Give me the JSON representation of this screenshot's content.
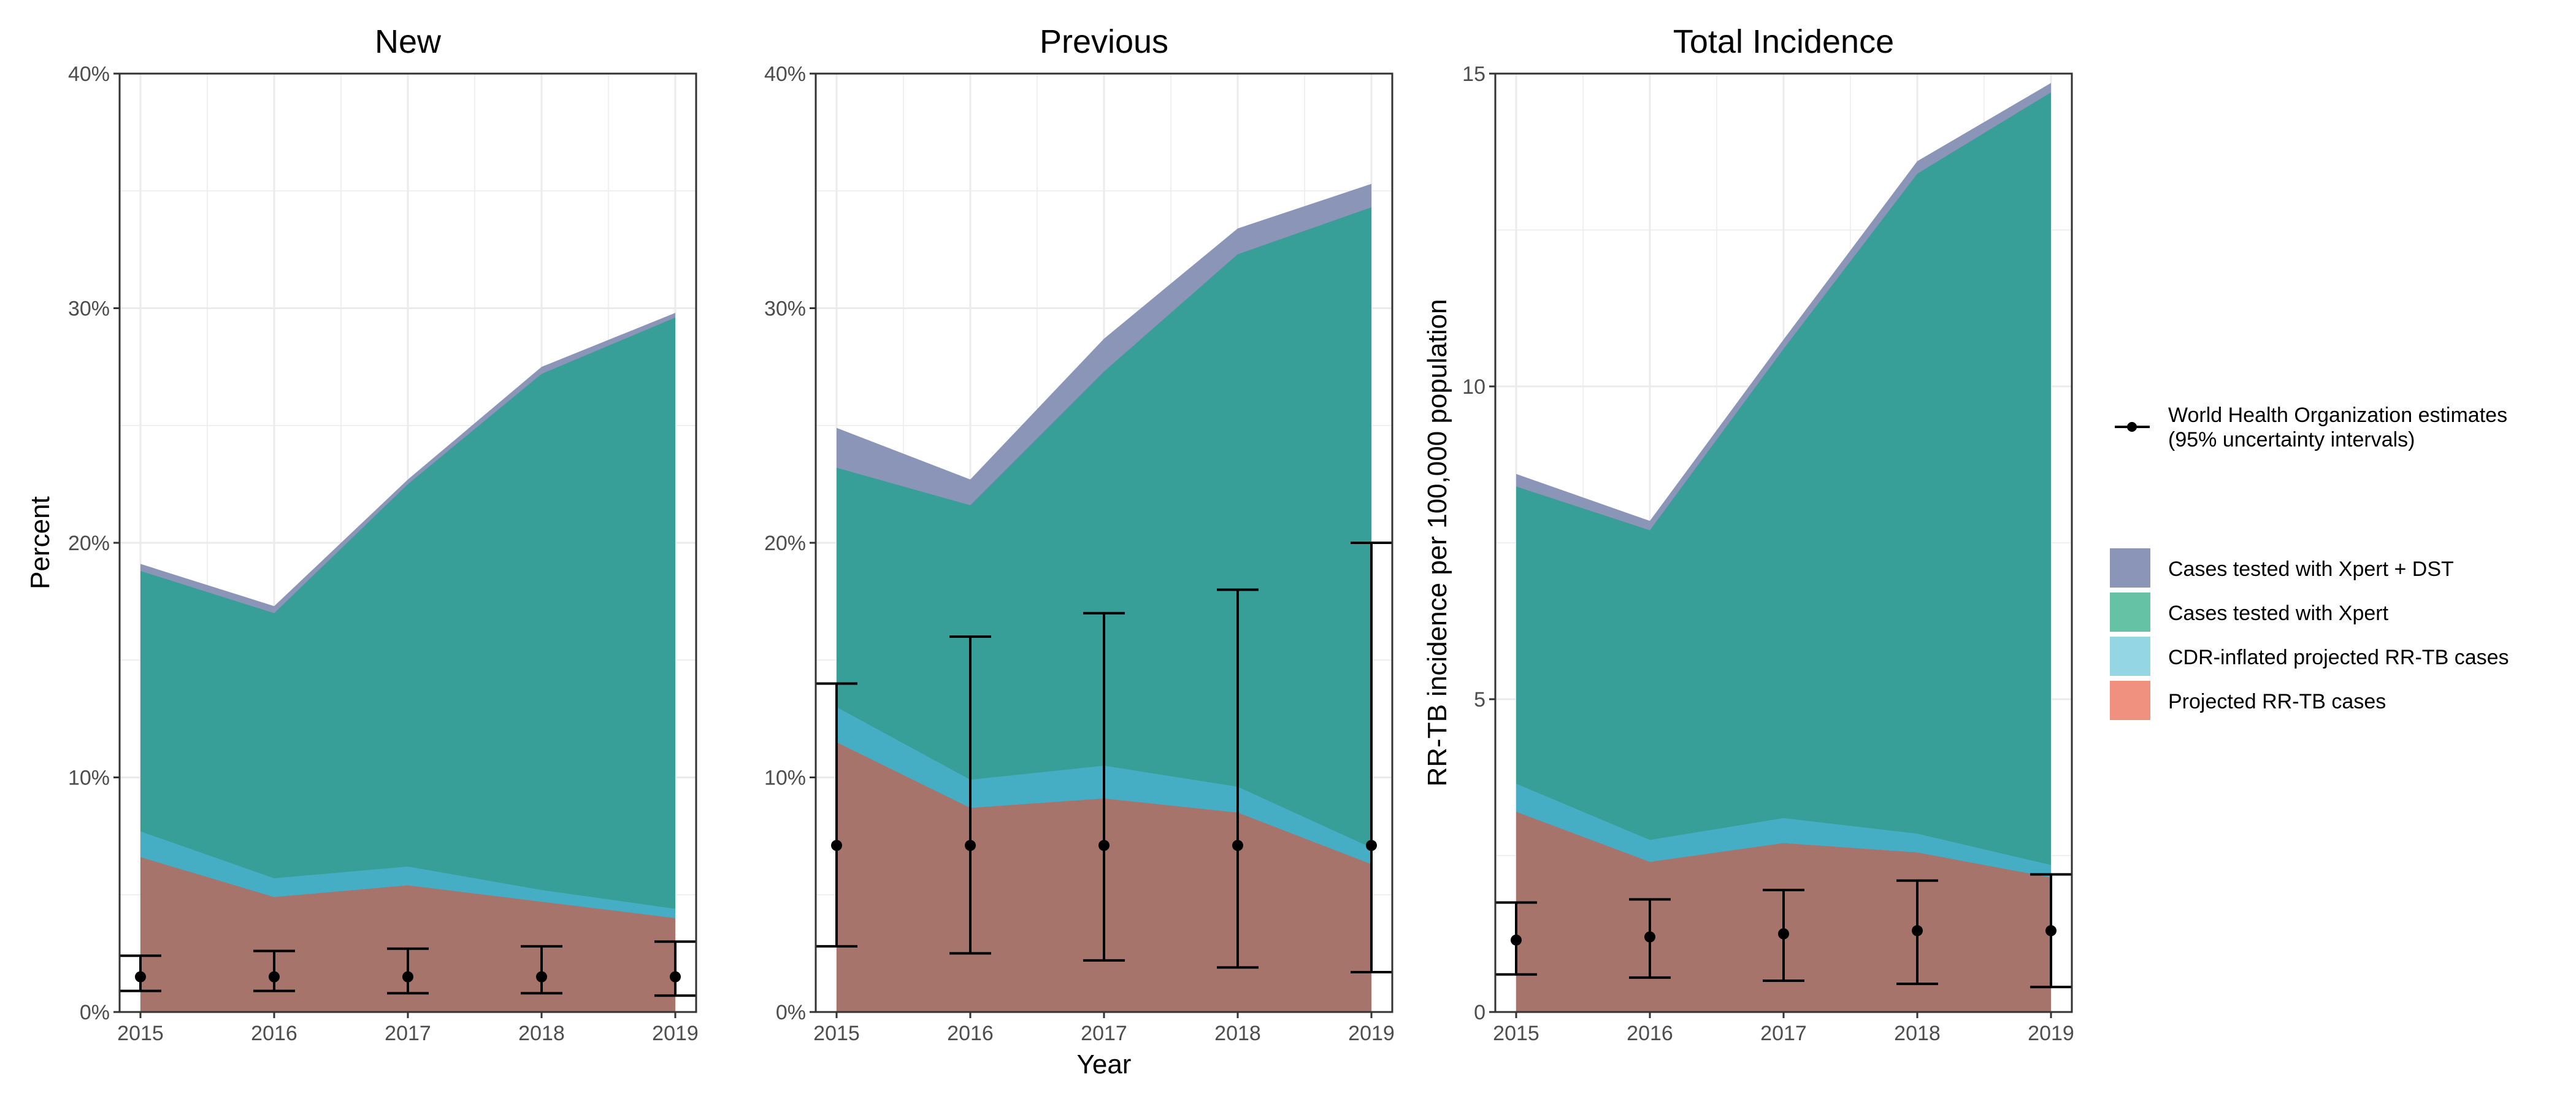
{
  "chart_data": [
    {
      "type": "area",
      "title": "New",
      "ylabel": "Percent",
      "ylim": [
        0,
        40
      ],
      "y_ticks": [
        "0%",
        "10%",
        "20%",
        "30%",
        "40%"
      ],
      "x": [
        "2015",
        "2016",
        "2017",
        "2018",
        "2019"
      ],
      "series": [
        {
          "name": "Projected RR-TB cases",
          "values": [
            6.6,
            4.9,
            5.4,
            4.7,
            4.0
          ]
        },
        {
          "name": "CDR-inflated projected RR-TB cases",
          "values": [
            7.7,
            5.7,
            6.2,
            5.2,
            4.4
          ]
        },
        {
          "name": "Cases tested with Xpert",
          "values": [
            18.8,
            17.0,
            22.5,
            27.2,
            29.6
          ]
        },
        {
          "name": "Cases tested with Xpert + DST",
          "values": [
            19.1,
            17.3,
            22.7,
            27.5,
            29.8
          ]
        }
      ],
      "who_estimates": {
        "point": [
          1.5,
          1.5,
          1.5,
          1.5,
          1.5
        ],
        "lower": [
          0.9,
          0.9,
          0.8,
          0.8,
          0.7
        ],
        "upper": [
          2.4,
          2.6,
          2.7,
          2.8,
          3.0
        ]
      }
    },
    {
      "type": "area",
      "title": "Previous",
      "xlabel": "Year",
      "ylim": [
        0,
        40
      ],
      "y_ticks": [
        "0%",
        "10%",
        "20%",
        "30%",
        "40%"
      ],
      "x": [
        "2015",
        "2016",
        "2017",
        "2018",
        "2019"
      ],
      "series": [
        {
          "name": "Projected RR-TB cases",
          "values": [
            11.5,
            8.7,
            9.1,
            8.5,
            6.3
          ]
        },
        {
          "name": "CDR-inflated projected RR-TB cases",
          "values": [
            13.0,
            9.9,
            10.5,
            9.6,
            7.0
          ]
        },
        {
          "name": "Cases tested with Xpert",
          "values": [
            23.2,
            21.6,
            27.3,
            32.3,
            34.3
          ]
        },
        {
          "name": "Cases tested with Xpert + DST",
          "values": [
            24.9,
            22.7,
            28.7,
            33.4,
            35.3
          ]
        }
      ],
      "who_estimates": {
        "point": [
          7.1,
          7.1,
          7.1,
          7.1,
          7.1
        ],
        "lower": [
          2.8,
          2.5,
          2.2,
          1.9,
          1.7
        ],
        "upper": [
          14.0,
          16.0,
          17.0,
          18.0,
          20.0
        ]
      }
    },
    {
      "type": "area",
      "title": "Total Incidence",
      "ylabel": "RR-TB incidence per 100,000 population",
      "ylim": [
        0,
        15
      ],
      "y_ticks": [
        "0",
        "5",
        "10",
        "15"
      ],
      "x": [
        "2015",
        "2016",
        "2017",
        "2018",
        "2019"
      ],
      "series": [
        {
          "name": "Projected RR-TB cases",
          "values": [
            3.2,
            2.4,
            2.7,
            2.55,
            2.15
          ]
        },
        {
          "name": "CDR-inflated projected RR-TB cases",
          "values": [
            3.65,
            2.75,
            3.1,
            2.85,
            2.35
          ]
        },
        {
          "name": "Cases tested with Xpert",
          "values": [
            8.4,
            7.7,
            10.6,
            13.4,
            14.7
          ]
        },
        {
          "name": "Cases tested with Xpert + DST",
          "values": [
            8.6,
            7.85,
            10.75,
            13.6,
            14.85
          ]
        }
      ],
      "who_estimates": {
        "point": [
          1.15,
          1.2,
          1.25,
          1.3,
          1.3
        ],
        "lower": [
          0.6,
          0.55,
          0.5,
          0.45,
          0.4
        ],
        "upper": [
          1.75,
          1.8,
          1.95,
          2.1,
          2.2
        ]
      }
    }
  ],
  "legend": {
    "who_label_line1": "World Health Organization estimates",
    "who_label_line2": "(95% uncertainty intervals)",
    "items": [
      {
        "label": "Cases tested with Xpert + DST",
        "color": "#8b95b8"
      },
      {
        "label": "Cases tested with Xpert",
        "color": "#66c2a5"
      },
      {
        "label": "CDR-inflated projected RR-TB cases",
        "color": "#94d6e4"
      },
      {
        "label": "Projected RR-TB cases",
        "color": "#f0917f"
      }
    ]
  },
  "colors": {
    "xpert_dst": "#8b95b8",
    "xpert": "#389e98",
    "cdr": "#45aec4",
    "projected": "#a7746c",
    "grid": "#ebebeb"
  }
}
